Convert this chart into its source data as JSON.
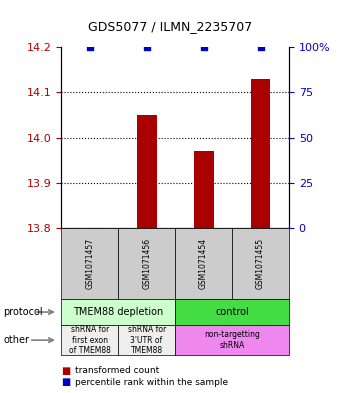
{
  "title": "GDS5077 / ILMN_2235707",
  "samples": [
    "GSM1071457",
    "GSM1071456",
    "GSM1071454",
    "GSM1071455"
  ],
  "transformed_counts": [
    13.8,
    14.05,
    13.97,
    14.13
  ],
  "percentile_ranks": [
    100,
    100,
    100,
    100
  ],
  "ylim_left": [
    13.8,
    14.2
  ],
  "ylim_right": [
    0,
    100
  ],
  "yticks_left": [
    13.8,
    13.9,
    14.0,
    14.1,
    14.2
  ],
  "yticks_right": [
    0,
    25,
    50,
    75,
    100
  ],
  "bar_color": "#aa0000",
  "dot_color": "#0000cc",
  "protocol_labels": [
    "TMEM88 depletion",
    "control"
  ],
  "protocol_colors": [
    "#ccffcc",
    "#44dd44"
  ],
  "other_labels": [
    "shRNA for\nfirst exon\nof TMEM88",
    "shRNA for\n3'UTR of\nTMEM88",
    "non-targetting\nshRNA"
  ],
  "other_colors": [
    "#eeeeee",
    "#eeeeee",
    "#ee88ee"
  ],
  "sample_box_color": "#cccccc",
  "background_color": "#ffffff"
}
